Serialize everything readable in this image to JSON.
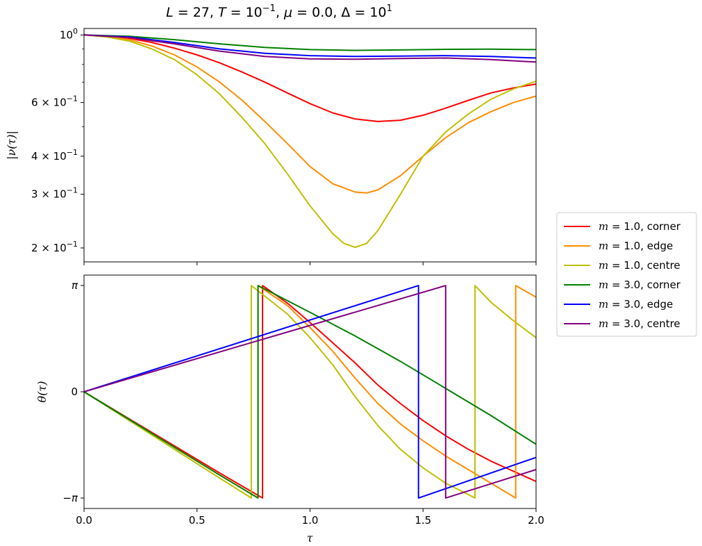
{
  "chart_data": {
    "title": "L = 27, T = 10^-1, μ = 0.0, Δ = 10^1",
    "title_parts": {
      "L": "L",
      "L_val": " = 27, ",
      "T": "T",
      "T_val": " = 10",
      "T_exp": "−1",
      "sep1": ", ",
      "mu": "μ",
      "mu_val": " = 0.0, ",
      "Delta": "Δ",
      "Delta_val": " = 10",
      "Delta_exp": "1"
    },
    "panels": [
      {
        "type": "line",
        "ylabel": "|ν(τ)|",
        "yscale": "log",
        "ylim": [
          0.18,
          1.05
        ],
        "xlim": [
          0,
          2
        ],
        "grid": false,
        "yticks": [
          {
            "value": 1.0,
            "mant": "10",
            "exp": "0"
          },
          {
            "value": 0.6,
            "mant": "6 × 10",
            "exp": "−1"
          },
          {
            "value": 0.4,
            "mant": "4 × 10",
            "exp": "−1"
          },
          {
            "value": 0.3,
            "mant": "3 × 10",
            "exp": "−1"
          },
          {
            "value": 0.2,
            "mant": "2 × 10",
            "exp": "−1"
          }
        ],
        "minor_yticks": [
          0.9,
          0.8,
          0.7,
          0.5
        ],
        "series": [
          {
            "name": "m = 1.0, corner",
            "color": "#ff0000",
            "x": [
              0,
              0.1,
              0.2,
              0.3,
              0.4,
              0.5,
              0.6,
              0.7,
              0.8,
              0.9,
              1.0,
              1.1,
              1.2,
              1.3,
              1.4,
              1.5,
              1.6,
              1.7,
              1.8,
              1.9,
              2.0
            ],
            "y": [
              1.0,
              0.99,
              0.975,
              0.945,
              0.905,
              0.86,
              0.81,
              0.755,
              0.7,
              0.645,
              0.595,
              0.555,
              0.53,
              0.52,
              0.525,
              0.545,
              0.575,
              0.61,
              0.645,
              0.67,
              0.69
            ]
          },
          {
            "name": "m = 1.0, edge",
            "color": "#ff8c00",
            "x": [
              0,
              0.1,
              0.2,
              0.3,
              0.4,
              0.5,
              0.6,
              0.7,
              0.8,
              0.9,
              1.0,
              1.1,
              1.2,
              1.25,
              1.3,
              1.4,
              1.5,
              1.6,
              1.7,
              1.8,
              1.9,
              2.0
            ],
            "y": [
              1.0,
              0.99,
              0.965,
              0.92,
              0.86,
              0.785,
              0.7,
              0.61,
              0.52,
              0.44,
              0.37,
              0.325,
              0.305,
              0.303,
              0.31,
              0.345,
              0.4,
              0.46,
              0.515,
              0.56,
              0.6,
              0.63
            ]
          },
          {
            "name": "m = 1.0, centre",
            "color": "#bfbf00",
            "x": [
              0,
              0.1,
              0.2,
              0.3,
              0.4,
              0.5,
              0.6,
              0.7,
              0.8,
              0.9,
              1.0,
              1.1,
              1.15,
              1.2,
              1.25,
              1.3,
              1.4,
              1.5,
              1.6,
              1.7,
              1.8,
              1.9,
              2.0
            ],
            "y": [
              1.0,
              0.985,
              0.955,
              0.9,
              0.83,
              0.74,
              0.64,
              0.535,
              0.44,
              0.35,
              0.275,
              0.223,
              0.207,
              0.201,
              0.207,
              0.228,
              0.3,
              0.4,
              0.48,
              0.55,
              0.615,
              0.665,
              0.705
            ]
          },
          {
            "name": "m = 3.0, corner",
            "color": "#008000",
            "x": [
              0,
              0.2,
              0.4,
              0.6,
              0.8,
              1.0,
              1.2,
              1.4,
              1.6,
              1.8,
              2.0
            ],
            "y": [
              1.0,
              0.99,
              0.965,
              0.935,
              0.91,
              0.895,
              0.89,
              0.893,
              0.897,
              0.898,
              0.895
            ]
          },
          {
            "name": "m = 3.0, edge",
            "color": "#0000ff",
            "x": [
              0,
              0.2,
              0.4,
              0.6,
              0.8,
              1.0,
              1.2,
              1.4,
              1.6,
              1.8,
              2.0
            ],
            "y": [
              1.0,
              0.985,
              0.945,
              0.9,
              0.87,
              0.855,
              0.85,
              0.852,
              0.855,
              0.85,
              0.84
            ]
          },
          {
            "name": "m = 3.0, centre",
            "color": "#800080",
            "x": [
              0,
              0.2,
              0.4,
              0.6,
              0.8,
              1.0,
              1.2,
              1.4,
              1.6,
              1.8,
              2.0
            ],
            "y": [
              1.0,
              0.98,
              0.935,
              0.885,
              0.85,
              0.835,
              0.832,
              0.837,
              0.84,
              0.83,
              0.815
            ]
          }
        ]
      },
      {
        "type": "line",
        "xlabel": "τ",
        "ylabel": "θ(τ)",
        "ylim": [
          -3.45,
          3.45
        ],
        "xlim": [
          0,
          2
        ],
        "grid": false,
        "xticks": [
          "0.0",
          "0.5",
          "1.0",
          "1.5",
          "2.0"
        ],
        "xtick_values": [
          0,
          0.5,
          1.0,
          1.5,
          2.0
        ],
        "yticks": [
          {
            "value": 3.14159,
            "label": "π"
          },
          {
            "value": 0,
            "label": "0"
          },
          {
            "value": -3.14159,
            "label": "−π"
          }
        ],
        "series": [
          {
            "name": "m = 1.0, corner",
            "color": "#ff0000",
            "x": [
              0,
              0.2,
              0.4,
              0.6,
              0.79,
              0.79,
              0.9,
              1.0,
              1.1,
              1.2,
              1.3,
              1.4,
              1.5,
              1.6,
              1.7,
              1.8,
              1.9,
              2.0
            ],
            "y": [
              0,
              -0.8,
              -1.6,
              -2.4,
              -3.14,
              3.14,
              2.62,
              2.05,
              1.45,
              0.85,
              0.2,
              -0.35,
              -0.85,
              -1.3,
              -1.7,
              -2.05,
              -2.35,
              -2.65
            ]
          },
          {
            "name": "m = 1.0, edge",
            "color": "#ff8c00",
            "x": [
              0,
              0.2,
              0.4,
              0.6,
              0.77,
              0.77,
              0.9,
              1.0,
              1.1,
              1.2,
              1.3,
              1.4,
              1.5,
              1.6,
              1.7,
              1.8,
              1.91,
              1.91,
              2.0
            ],
            "y": [
              0,
              -0.82,
              -1.64,
              -2.46,
              -3.14,
              3.14,
              2.55,
              1.9,
              1.2,
              0.4,
              -0.35,
              -0.95,
              -1.45,
              -1.9,
              -2.3,
              -2.7,
              -3.14,
              3.14,
              2.8
            ]
          },
          {
            "name": "m = 1.0, centre",
            "color": "#bfbf00",
            "x": [
              0,
              0.2,
              0.4,
              0.6,
              0.74,
              0.74,
              0.9,
              1.0,
              1.1,
              1.2,
              1.3,
              1.4,
              1.5,
              1.6,
              1.73,
              1.73,
              1.8,
              1.9,
              2.0
            ],
            "y": [
              0,
              -0.85,
              -1.7,
              -2.55,
              -3.14,
              3.14,
              2.3,
              1.6,
              0.8,
              -0.15,
              -1.0,
              -1.7,
              -2.25,
              -2.7,
              -3.14,
              3.14,
              2.65,
              2.1,
              1.6
            ]
          },
          {
            "name": "m = 3.0, corner",
            "color": "#008000",
            "x": [
              0,
              0.2,
              0.4,
              0.6,
              0.77,
              0.77,
              1.0,
              1.2,
              1.4,
              1.6,
              1.8,
              2.0
            ],
            "y": [
              0,
              -0.82,
              -1.64,
              -2.46,
              -3.14,
              3.14,
              2.35,
              1.65,
              0.9,
              0.1,
              -0.7,
              -1.55
            ]
          },
          {
            "name": "m = 3.0, edge",
            "color": "#0000ff",
            "x": [
              0,
              1.48,
              1.48,
              2.0
            ],
            "y": [
              0,
              3.14,
              -3.14,
              -1.94
            ]
          },
          {
            "name": "m = 3.0, centre",
            "color": "#800080",
            "x": [
              0,
              1.6,
              1.6,
              2.0
            ],
            "y": [
              0,
              3.14,
              -3.14,
              -2.3
            ]
          }
        ]
      }
    ],
    "legend": {
      "placement": "right",
      "entries": [
        {
          "color": "#ff0000",
          "m": "m",
          "rest": " = 1.0, corner"
        },
        {
          "color": "#ff8c00",
          "m": "m",
          "rest": " = 1.0, edge"
        },
        {
          "color": "#bfbf00",
          "m": "m",
          "rest": " = 1.0, centre"
        },
        {
          "color": "#008000",
          "m": "m",
          "rest": " = 3.0, corner"
        },
        {
          "color": "#0000ff",
          "m": "m",
          "rest": " = 3.0, edge"
        },
        {
          "color": "#800080",
          "m": "m",
          "rest": " = 3.0, centre"
        }
      ]
    }
  }
}
